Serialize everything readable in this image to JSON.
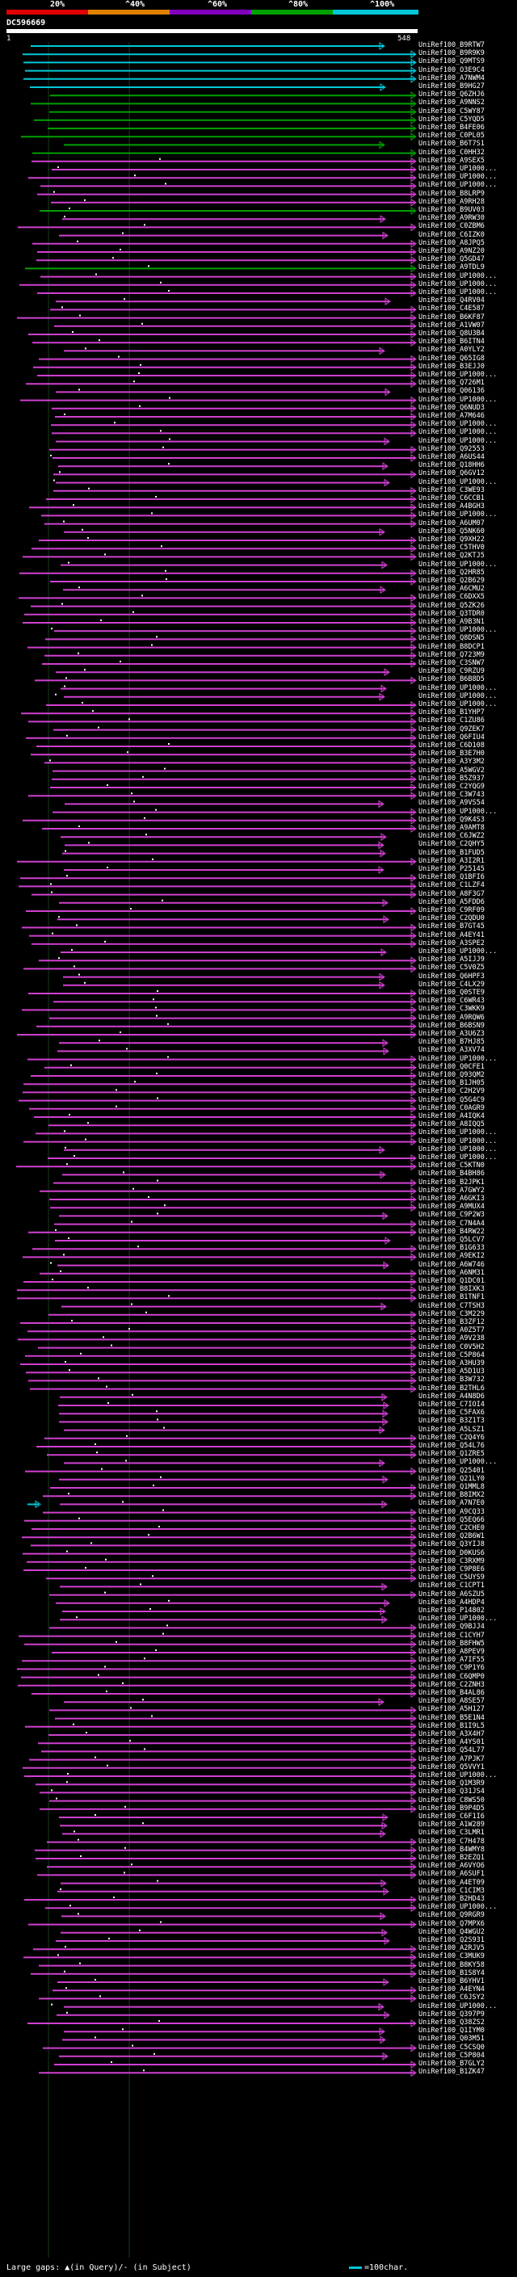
{
  "scale": {
    "ticks": [
      "20%",
      "^40%",
      "^60%",
      "^80%",
      "^100%"
    ],
    "colors": [
      "#e00000",
      "#e08000",
      "#8000c0",
      "#00a000",
      "#00c8d8"
    ]
  },
  "query": {
    "name": "DC596669",
    "start": "1",
    "end": "548"
  },
  "hit_colors": {
    "top": "#00c8d8",
    "high": "#00a000",
    "mid": "#d040d0"
  },
  "hits": [
    "UniRef100_B9RTW7",
    "UniRef100_B9R9K9",
    "UniRef100_Q9MTS9",
    "UniRef100_O3E9C4",
    "UniRef100_A7NWM4",
    "UniRef100_B9HG27",
    "UniRef100_Q6ZHJ6",
    "UniRef100_A9NNS2",
    "UniRef100_C5WY87",
    "UniRef100_C5YQD5",
    "UniRef100_B4FE06",
    "UniRef100_C0PL05",
    "UniRef100_B6T7S1",
    "UniRef100_C0HH32",
    "UniRef100_A9SEX5",
    "UniRef100_UP1000...",
    "UniRef100_UP1000...",
    "UniRef100_UP1000...",
    "UniRef100_B8LRP9",
    "UniRef100_A9RH28",
    "UniRef100_B9UV03",
    "UniRef100_A9RW30",
    "UniRef100_C0ZBM6",
    "UniRef100_C6IZK0",
    "UniRef100_A8JPQ5",
    "UniRef100_A9NZ20",
    "UniRef100_Q5GD47",
    "UniRef100_A9TDL9",
    "UniRef100_UP1000...",
    "UniRef100_UP1000...",
    "UniRef100_UP1000...",
    "UniRef100_Q4RV04",
    "UniRef100_C4E587",
    "UniRef100_B6KF87",
    "UniRef100_A1VW07",
    "UniRef100_Q8U3B4",
    "UniRef100_B6ITN4",
    "UniRef100_A0YLY2",
    "UniRef100_Q65IG8",
    "UniRef100_B3EJJ0",
    "UniRef100_UP1000...",
    "UniRef100_Q726M1",
    "UniRef100_Q06136",
    "UniRef100_UP1000...",
    "UniRef100_Q6NUD3",
    "UniRef100_A7M646",
    "UniRef100_UP1000...",
    "UniRef100_UP1000...",
    "UniRef100_UP1000...",
    "UniRef100_Q92553",
    "UniRef100_A6US44",
    "UniRef100_Q18HH6",
    "UniRef100_Q6GV12",
    "UniRef100_UP1000...",
    "UniRef100_C3WE93",
    "UniRef100_C6CCB1",
    "UniRef100_A4BGH3",
    "UniRef100_UP1000...",
    "UniRef100_A6UM07",
    "UniRef100_Q5NK60",
    "UniRef100_Q9XH22",
    "UniRef100_C5THV0",
    "UniRef100_Q2KTJ5",
    "UniRef100_UP1000...",
    "UniRef100_Q2HR85",
    "UniRef100_Q2B629",
    "UniRef100_A6CMU2",
    "UniRef100_C6DXX5",
    "UniRef100_Q5ZK26",
    "UniRef100_Q3TDR0",
    "UniRef100_A9B3N1",
    "UniRef100_UP1000...",
    "UniRef100_Q8DSN5",
    "UniRef100_B8DCP1",
    "UniRef100_Q723M9",
    "UniRef100_C3SNW7",
    "UniRef100_C9RZU9",
    "UniRef100_B6B8D5",
    "UniRef100_UP1000...",
    "UniRef100_UP1000...",
    "UniRef100_UP1000...",
    "UniRef100_B1YHP7",
    "UniRef100_C1ZU86",
    "UniRef100_Q9ZEK7",
    "UniRef100_Q6FIU4",
    "UniRef100_C6D108",
    "UniRef100_B3E7H0",
    "UniRef100_A3Y3M2",
    "UniRef100_A5WGV2",
    "UniRef100_B5Z937",
    "UniRef100_C2YQG9",
    "UniRef100_C3W743",
    "UniRef100_A9VS54",
    "UniRef100_UP1000...",
    "UniRef100_Q9K4S3",
    "UniRef100_A9AMT8",
    "UniRef100_C6JWZ2",
    "UniRef100_C2QHY5",
    "UniRef100_B1FUD5",
    "UniRef100_A3I2R1",
    "UniRef100_P25145",
    "UniRef100_Q1BFI6",
    "UniRef100_C1LZF4",
    "UniRef100_A8F3G7",
    "UniRef100_A5FDD6",
    "UniRef100_C9RF09",
    "UniRef100_C2QDU0",
    "UniRef100_B7GT45",
    "UniRef100_A4EY41",
    "UniRef100_A3SPE2",
    "UniRef100_UP1000...",
    "UniRef100_A5IJJ9",
    "UniRef100_C5V0Z5",
    "UniRef100_Q6HPF3",
    "UniRef100_C4LX29",
    "UniRef100_Q0STE9",
    "UniRef100_C6WR43",
    "UniRef100_C3WKK9",
    "UniRef100_A9RQW6",
    "UniRef100_B6BSN9",
    "UniRef100_A3U6Z3",
    "UniRef100_B7HJ85",
    "UniRef100_A3XV74",
    "UniRef100_UP1000...",
    "UniRef100_Q0CFE1",
    "UniRef100_Q93QM2",
    "UniRef100_B1JH05",
    "UniRef100_C2H2V9",
    "UniRef100_Q5G4C9",
    "UniRef100_C0AGR9",
    "UniRef100_A4IQK4",
    "UniRef100_A8IQQ5",
    "UniRef100_UP1000...",
    "UniRef100_UP1000...",
    "UniRef100_UP1000...",
    "UniRef100_UP1000...",
    "UniRef100_C5KTN0",
    "UniRef100_B4BH86",
    "UniRef100_B2JPK1",
    "UniRef100_A7GWY2",
    "UniRef100_A6GKI3",
    "UniRef100_A9MUX4",
    "UniRef100_C9P2W3",
    "UniRef100_C7N4A4",
    "UniRef100_B4RW22",
    "UniRef100_Q5LCV7",
    "UniRef100_B1G633",
    "UniRef100_A9EKI2",
    "UniRef100_A6W746",
    "UniRef100_A6NM31",
    "UniRef100_Q1DC01",
    "UniRef100_B8IXK3",
    "UniRef100_B1TNF1",
    "UniRef100_C7TSH3",
    "UniRef100_C3M229",
    "UniRef100_B3ZF12",
    "UniRef100_A0Z5T7",
    "UniRef100_A9V238",
    "UniRef100_C0V5H2",
    "UniRef100_C5P864",
    "UniRef100_A3HU39",
    "UniRef100_A5D1U3",
    "UniRef100_B3W732",
    "UniRef100_B2THL6",
    "UniRef100_A4N8D6",
    "UniRef100_C7IOI4",
    "UniRef100_C5FAX6",
    "UniRef100_B3Z1T3",
    "UniRef100_A5LSZ1",
    "UniRef100_C2Q4Y6",
    "UniRef100_Q54L76",
    "UniRef100_Q1ZRE5",
    "UniRef100_UP1000...",
    "UniRef100_Q25401",
    "UniRef100_Q21LY0",
    "UniRef100_Q1MML8",
    "UniRef100_B8IMX2",
    "UniRef100_A7N7E0",
    "UniRef100_A9CQ33",
    "UniRef100_Q5EQ66",
    "UniRef100_C2CHE0",
    "UniRef100_Q2B6W1",
    "UniRef100_Q3YIJ8",
    "UniRef100_D0KUS6",
    "UniRef100_C3RXM9",
    "UniRef100_C9P8E6",
    "UniRef100_C5UYS9",
    "UniRef100_C1CPT1",
    "UniRef100_A6SZU5",
    "UniRef100_A4HDP4",
    "UniRef100_P14802",
    "UniRef100_UP1000...",
    "UniRef100_Q9BJJ4",
    "UniRef100_C1CYH7",
    "UniRef100_B8FHW5",
    "UniRef100_A8PEV9",
    "UniRef100_A7IF55",
    "UniRef100_C9P1Y6",
    "UniRef100_C6QMP0",
    "UniRef100_C2ZNH3",
    "UniRef100_B4AL86",
    "UniRef100_A8SE57",
    "UniRef100_A5H127",
    "UniRef100_B5E1N4",
    "UniRef100_B1I9L5",
    "UniRef100_A3X4H7",
    "UniRef100_A4YS01",
    "UniRef100_Q54L77",
    "UniRef100_A7PJK7",
    "UniRef100_Q5VVY1",
    "UniRef100_UP1000...",
    "UniRef100_Q1M3R9",
    "UniRef100_Q31JS4",
    "UniRef100_C8WS50",
    "UniRef100_B9P4D5",
    "UniRef100_C6F1I6",
    "UniRef100_A1W289",
    "UniRef100_C3LMR1",
    "UniRef100_C7H478",
    "UniRef100_B4WMY8",
    "UniRef100_B2EZQ1",
    "UniRef100_A6VYO6",
    "UniRef100_A6SUF1",
    "UniRef100_A4ET09",
    "UniRef100_C1CIM3",
    "UniRef100_B2HD43",
    "UniRef100_UP1000...",
    "UniRef100_Q9RGR9",
    "UniRef100_Q7MPX6",
    "UniRef100_Q4WGU2",
    "UniRef100_Q2S931",
    "UniRef100_A2RJV5",
    "UniRef100_C3MUK9",
    "UniRef100_B8KY58",
    "UniRef100_B1S8Y4",
    "UniRef100_B6YHV1",
    "UniRef100_A4EYN4",
    "UniRef100_C6JSY2",
    "UniRef100_UP1000...",
    "UniRef100_Q397P9",
    "UniRef100_Q38ZS2",
    "UniRef100_Q1IYM0",
    "UniRef100_Q03M51",
    "UniRef100_C5CSQ0",
    "UniRef100_C5P804",
    "UniRef100_B7GLY2",
    "UniRef100_B1ZK47"
  ],
  "legend": {
    "large_gaps": "Large gaps: ▲(in Query)/- (in Subject)",
    "scale": "=100char."
  }
}
